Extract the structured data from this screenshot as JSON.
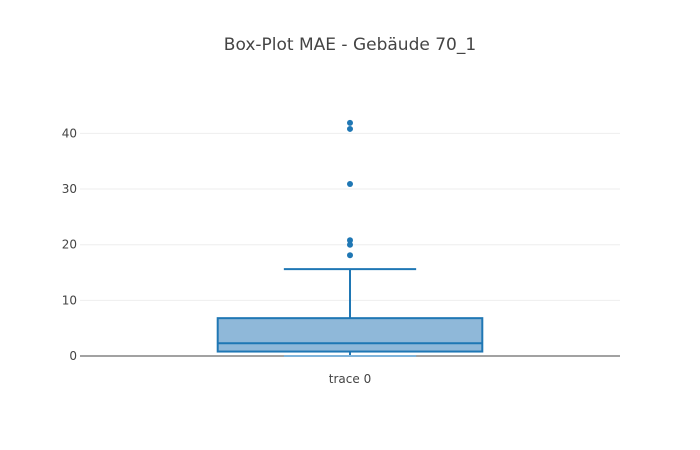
{
  "chart_data": {
    "type": "box",
    "title": "Box-Plot MAE - Gebäude 70_1",
    "xlabel": "",
    "ylabel": "",
    "categories": [
      "trace 0"
    ],
    "ylim": [
      0,
      46
    ],
    "yticks": [
      0,
      10,
      20,
      30,
      40
    ],
    "grid": true,
    "series": [
      {
        "name": "trace 0",
        "min": 0,
        "q1": 0.8,
        "median": 2.3,
        "q3": 6.8,
        "upper_fence": 15.6,
        "outliers": [
          18.1,
          20.0,
          20.8,
          30.9,
          40.8,
          41.9
        ]
      }
    ],
    "colors": {
      "line": "#1f77b4",
      "fill": "#8fb8d9",
      "outlier": "#1f77b4"
    }
  }
}
